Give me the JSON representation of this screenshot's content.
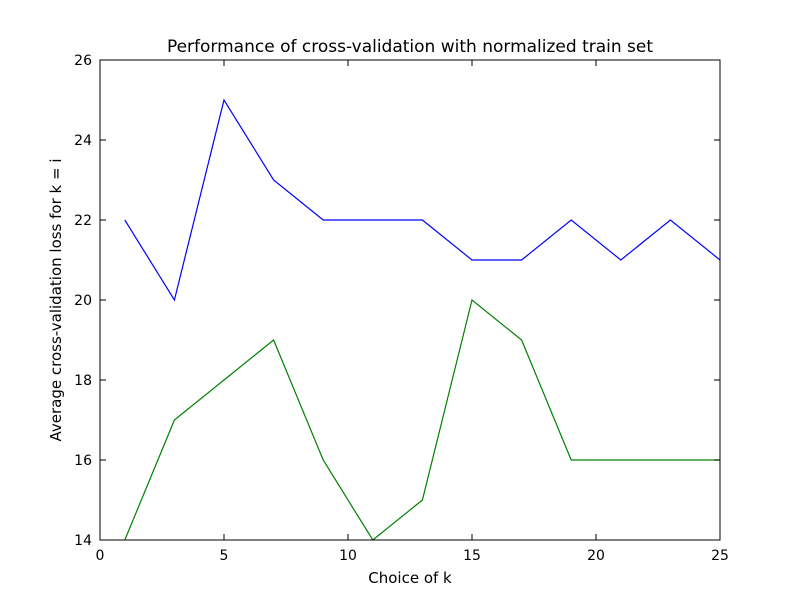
{
  "chart_data": {
    "type": "line",
    "title": "Performance of cross-validation with normalized train set",
    "xlabel": "Choice of k",
    "ylabel": "Average cross-validation loss for k = i",
    "xlim": [
      0,
      25
    ],
    "ylim": [
      14,
      26
    ],
    "xticks": [
      0,
      5,
      10,
      15,
      20,
      25
    ],
    "yticks": [
      14,
      16,
      18,
      20,
      22,
      24,
      26
    ],
    "grid": false,
    "legend": "none",
    "x": [
      1,
      3,
      5,
      7,
      9,
      11,
      13,
      15,
      17,
      19,
      21,
      23,
      25
    ],
    "series": [
      {
        "color": "#0000ff",
        "values": [
          22,
          20,
          25,
          23,
          22,
          22,
          22,
          21,
          21,
          22,
          21,
          22,
          21
        ]
      },
      {
        "color": "#008000",
        "values": [
          14,
          17,
          18,
          19,
          16,
          14,
          15,
          20,
          19,
          16,
          16,
          16,
          16
        ]
      }
    ]
  }
}
